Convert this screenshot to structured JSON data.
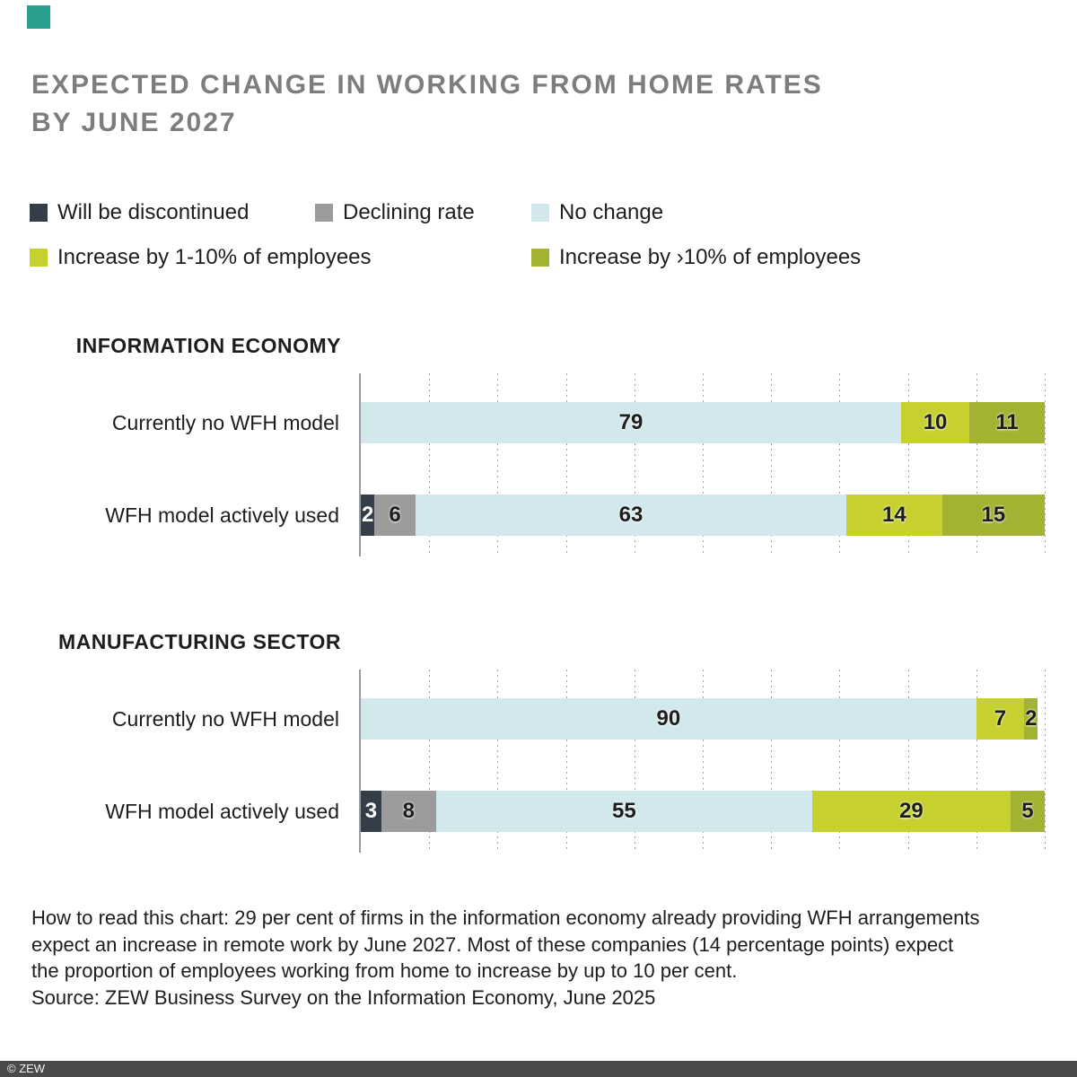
{
  "brand": {
    "square_color": "#2aa18f"
  },
  "title": {
    "line1": "EXPECTED CHANGE IN WORKING FROM HOME RATES",
    "line2": "BY JUNE 2027",
    "color": "#7d7d7d"
  },
  "chart_data": {
    "type": "bar",
    "orientation": "horizontal",
    "stacked": true,
    "value_unit": "per cent of firms",
    "xlim": [
      0,
      100
    ],
    "grid": "dashed vertical gridlines every 10 units from 10 to 100",
    "legend_position": "top",
    "series": [
      "Will be discontinued",
      "Declining rate",
      "No change",
      "Increase by 1-10% of employees",
      "Increase by ›10% of employees"
    ],
    "series_keys": [
      "will-be-discontinued",
      "declining-rate",
      "no-change",
      "increase-by-1-10pct",
      "increase-by-gt-10pct"
    ],
    "colors": [
      "#333e48",
      "#9b9b9b",
      "#d2e8ec",
      "#c6d02f",
      "#a3b232"
    ],
    "label_colors": [
      "#ffffff",
      "#1d1d1b",
      "#1d1d1b",
      "#1d1d1b",
      "#1d1d1b"
    ],
    "groups": [
      {
        "title": "INFORMATION ECONOMY",
        "rows": [
          {
            "label": "Currently no WFH model",
            "values": [
              0,
              0,
              79,
              10,
              11
            ]
          },
          {
            "label": "WFH model actively used",
            "values": [
              2,
              6,
              63,
              14,
              15
            ]
          }
        ]
      },
      {
        "title": "MANUFACTURING SECTOR",
        "rows": [
          {
            "label": "Currently no WFH model",
            "values": [
              0,
              0,
              90,
              7,
              2
            ]
          },
          {
            "label": "WFH model actively used",
            "values": [
              3,
              8,
              55,
              29,
              5
            ]
          }
        ]
      }
    ]
  },
  "note": {
    "lines": [
      "How to read this chart: 29 per cent of firms in the information economy already providing WFH arrangements",
      "expect an increase in remote work by June 2027. Most of these companies (14 percentage points) expect",
      "the proportion of employees working from home to increase by up to 10 per cent."
    ]
  },
  "source": {
    "text": "Source: ZEW Business Survey on the Information Economy, June 2025"
  },
  "footer": {
    "label": "© ZEW",
    "background": "#4a4a4a"
  }
}
